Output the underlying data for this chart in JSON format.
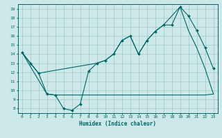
{
  "xlabel": "Humidex (Indice chaleur)",
  "bg_color": "#cce8e8",
  "grid_color": "#aacccc",
  "line_color": "#006666",
  "xlim": [
    -0.5,
    23.5
  ],
  "ylim": [
    7.5,
    19.5
  ],
  "xticks": [
    0,
    1,
    2,
    3,
    4,
    5,
    6,
    7,
    8,
    9,
    10,
    11,
    12,
    13,
    14,
    15,
    16,
    17,
    18,
    19,
    20,
    21,
    22,
    23
  ],
  "yticks": [
    8,
    9,
    10,
    11,
    12,
    13,
    14,
    15,
    16,
    17,
    18,
    19
  ],
  "line1_x": [
    0,
    1,
    2,
    3,
    4,
    5,
    6,
    7,
    8,
    9,
    10,
    11,
    12,
    13,
    14,
    15,
    16,
    17,
    18,
    19,
    20,
    21,
    22,
    23
  ],
  "line1_y": [
    14.2,
    13.0,
    11.9,
    9.6,
    9.5,
    8.0,
    7.8,
    8.5,
    12.1,
    13.0,
    13.3,
    14.0,
    15.5,
    16.0,
    14.0,
    15.5,
    16.5,
    17.2,
    17.2,
    19.2,
    18.2,
    16.6,
    14.7,
    12.4
  ],
  "line2_x": [
    0,
    3,
    4,
    5,
    6,
    7,
    8,
    9,
    10,
    11,
    12,
    13,
    14,
    15,
    16,
    17,
    18,
    19,
    20,
    21,
    22,
    23
  ],
  "line2_y": [
    14.2,
    9.6,
    9.5,
    9.5,
    9.5,
    9.5,
    9.5,
    9.5,
    9.5,
    9.5,
    9.5,
    9.5,
    9.5,
    9.5,
    9.5,
    9.5,
    9.5,
    9.5,
    9.5,
    9.5,
    9.5,
    9.6
  ],
  "line3_x": [
    0,
    2,
    9,
    10,
    11,
    12,
    13,
    14,
    15,
    16,
    17,
    18,
    19,
    20,
    21,
    22,
    23
  ],
  "line3_y": [
    14.2,
    11.9,
    13.0,
    13.3,
    14.0,
    15.5,
    16.0,
    14.0,
    15.5,
    16.5,
    17.2,
    18.2,
    19.2,
    16.6,
    14.7,
    12.4,
    9.6
  ]
}
